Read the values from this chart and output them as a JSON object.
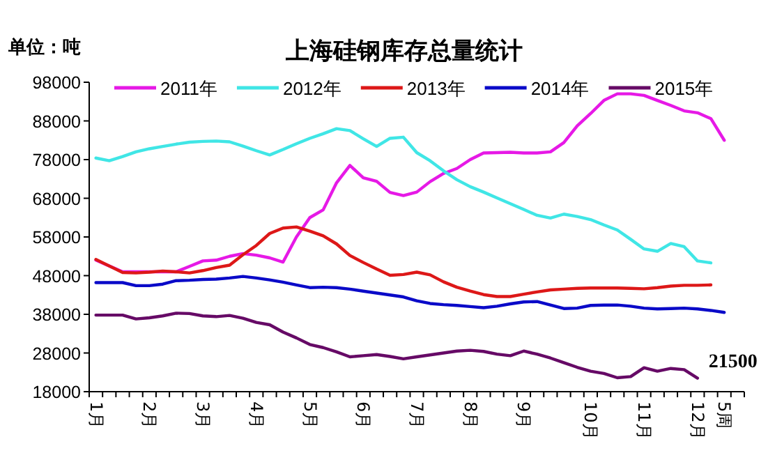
{
  "chart_data": {
    "type": "line",
    "title": "上海硅钢库存总量统计",
    "ylabel": "单位：吨",
    "ylim": [
      18000,
      98000
    ],
    "yticks": [
      18000,
      28000,
      38000,
      48000,
      58000,
      68000,
      78000,
      88000,
      98000
    ],
    "categories": [
      "1月",
      null,
      null,
      null,
      "2月",
      null,
      null,
      null,
      "3月",
      null,
      null,
      null,
      "4月",
      null,
      null,
      null,
      "5月",
      null,
      null,
      null,
      "6月",
      null,
      null,
      null,
      "7月",
      null,
      null,
      null,
      "8月",
      null,
      null,
      null,
      "9月",
      null,
      null,
      null,
      null,
      "10月",
      null,
      null,
      null,
      "11月",
      null,
      null,
      null,
      "12月",
      null,
      "5周",
      null
    ],
    "grid": false,
    "legend": "top",
    "marker": "none",
    "line_style": "solid",
    "series": [
      {
        "name": "2011年",
        "color": "#e619e6",
        "values": [
          52000,
          50500,
          49000,
          49000,
          49000,
          49000,
          49000,
          50400,
          51800,
          52000,
          53000,
          53700,
          53300,
          52600,
          51500,
          58000,
          63000,
          65000,
          72000,
          76500,
          73300,
          72400,
          69500,
          68700,
          69600,
          72300,
          74400,
          75700,
          78000,
          79700,
          79800,
          79900,
          79700,
          79700,
          80000,
          82400,
          86700,
          89900,
          93300,
          95000,
          95000,
          94600,
          93300,
          92000,
          90600,
          90100,
          88600,
          83000,
          null
        ]
      },
      {
        "name": "2012年",
        "color": "#40e6e6",
        "values": [
          78400,
          77700,
          78800,
          80000,
          80800,
          81400,
          82000,
          82500,
          82700,
          82800,
          82600,
          81500,
          80300,
          79200,
          80600,
          82100,
          83500,
          84700,
          86000,
          85500,
          83400,
          81400,
          83500,
          83800,
          79800,
          77700,
          75100,
          72800,
          71000,
          69600,
          68100,
          66600,
          65100,
          63600,
          62900,
          63900,
          63300,
          62500,
          61100,
          59800,
          57400,
          54900,
          54300,
          56300,
          55500,
          51800,
          51300,
          null,
          null
        ]
      },
      {
        "name": "2013年",
        "color": "#dd1818",
        "values": [
          52200,
          50500,
          48800,
          48700,
          48900,
          49200,
          49000,
          48700,
          49300,
          50100,
          50700,
          53400,
          55800,
          58900,
          60300,
          60600,
          59500,
          58300,
          56200,
          53200,
          51400,
          49700,
          48100,
          48300,
          48900,
          48200,
          46400,
          45000,
          44000,
          43100,
          42600,
          42600,
          43200,
          43800,
          44300,
          44500,
          44700,
          44800,
          44800,
          44800,
          44700,
          44600,
          44900,
          45300,
          45500,
          45500,
          45600,
          null,
          null
        ]
      },
      {
        "name": "2014年",
        "color": "#0a0ac8",
        "values": [
          46200,
          46200,
          46200,
          45400,
          45400,
          45800,
          46700,
          46800,
          47000,
          47100,
          47400,
          47800,
          47400,
          46900,
          46300,
          45600,
          44900,
          45000,
          44900,
          44500,
          44000,
          43500,
          43000,
          42500,
          41500,
          40800,
          40500,
          40300,
          40000,
          39700,
          40100,
          40700,
          41200,
          41300,
          40400,
          39500,
          39600,
          40300,
          40400,
          40400,
          40100,
          39600,
          39400,
          39500,
          39600,
          39400,
          39000,
          38500,
          null
        ]
      },
      {
        "name": "2015年",
        "color": "#660a66",
        "values": [
          37800,
          37800,
          37800,
          36800,
          37100,
          37600,
          38300,
          38200,
          37600,
          37400,
          37700,
          37000,
          35900,
          35300,
          33400,
          31900,
          30200,
          29400,
          28300,
          27000,
          27300,
          27600,
          27100,
          26500,
          27000,
          27500,
          28000,
          28500,
          28700,
          28400,
          27700,
          27300,
          28500,
          27700,
          26700,
          25500,
          24300,
          23300,
          22700,
          21600,
          21900,
          24200,
          23300,
          24000,
          23700,
          21500,
          null,
          null,
          null
        ],
        "value_labels": [
          null,
          null,
          null,
          null,
          null,
          null,
          null,
          null,
          null,
          null,
          null,
          null,
          null,
          null,
          null,
          null,
          null,
          null,
          null,
          null,
          null,
          null,
          null,
          null,
          null,
          null,
          null,
          null,
          null,
          null,
          null,
          null,
          null,
          null,
          null,
          null,
          null,
          null,
          null,
          null,
          null,
          null,
          null,
          null,
          null,
          "21500",
          null,
          null,
          null
        ]
      }
    ]
  }
}
